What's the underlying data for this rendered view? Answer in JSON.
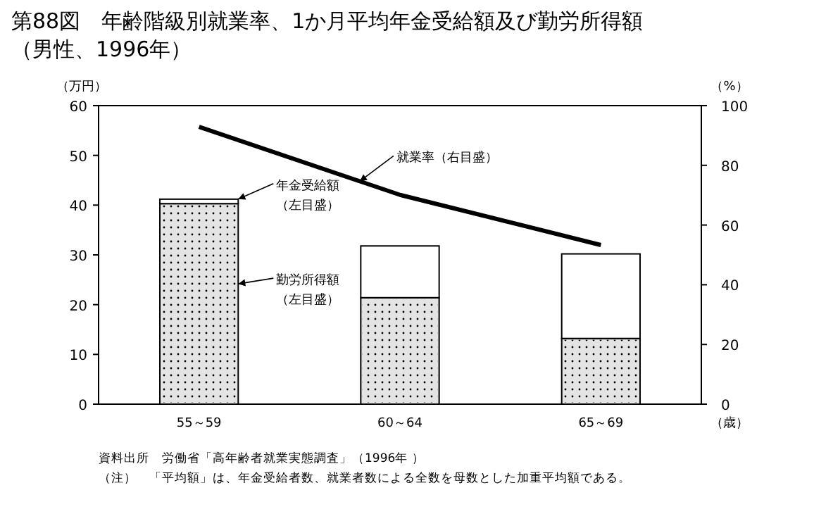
{
  "chart_data": {
    "type": "bar",
    "title": "第88図　年齢階級別就業率、1か月平均年金受給額及び勤労所得額（男性、1996年）",
    "categories": [
      "55～59",
      "60～64",
      "65～69"
    ],
    "stacked": true,
    "series": [
      {
        "name": "勤労所得額（左目盛）",
        "color": "#e4e4e4",
        "values": [
          40.3,
          21.4,
          13.2
        ]
      },
      {
        "name": "年金受給額（左目盛）",
        "color": "#ffffff",
        "values": [
          0.9,
          10.4,
          17.0
        ]
      },
      {
        "name": "就業率（右目盛）",
        "type": "line",
        "axis": "y2",
        "color": "#000000",
        "values": [
          92.9,
          70.1,
          53.3
        ]
      }
    ],
    "ylabel": "（万円）",
    "y2label": "（%）",
    "xlabel": "（歳）",
    "ylim": [
      0,
      60
    ],
    "yticks": [
      0,
      10,
      20,
      30,
      40,
      50,
      60
    ],
    "y2lim": [
      0,
      100
    ],
    "y2ticks": [
      0,
      20,
      40,
      60,
      80,
      100
    ],
    "annotations": [
      "資料出所　労働省「高年齢者就業実態調査」（1996年 ）",
      "（注）　「平均額」は、年金受給者数、就業者数による全数を母数とした加重平均額である。"
    ],
    "legend": "left",
    "grid": false
  }
}
